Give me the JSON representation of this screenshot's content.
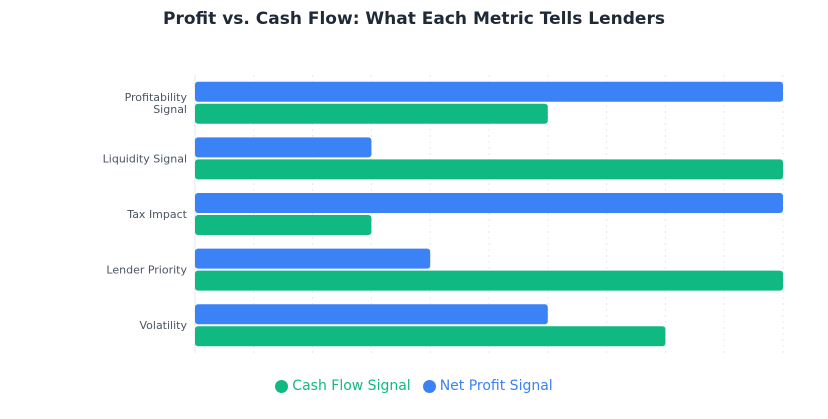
{
  "chart_data": {
    "type": "bar",
    "orientation": "horizontal",
    "title": "Profit vs. Cash Flow: What Each Metric Tells Lenders",
    "categories": [
      "Profitability Signal",
      "Liquidity Signal",
      "Tax Impact",
      "Lender Priority",
      "Volatility"
    ],
    "series": [
      {
        "name": "Net Profit Signal",
        "color": "#3b82f6",
        "values": [
          10,
          3,
          10,
          4,
          6
        ]
      },
      {
        "name": "Cash Flow Signal",
        "color": "#10b981",
        "values": [
          6,
          10,
          3,
          10,
          8
        ]
      }
    ],
    "xlim": [
      0,
      10
    ],
    "grid": true,
    "legend_position": "bottom",
    "legend_order": [
      "Cash Flow Signal",
      "Net Profit Signal"
    ]
  }
}
